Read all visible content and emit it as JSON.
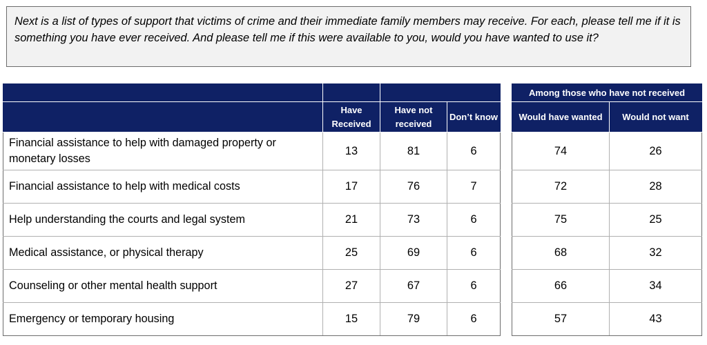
{
  "question": "Next is a list of types of support that victims of crime and their immediate family members may receive. For each, please tell me if it is something you have ever received. And please tell me if this were available to you, would you have wanted to use it?",
  "headers": {
    "have_received": "Have Received",
    "have_not_received": "Have not received",
    "dont_know": "Don’t know",
    "group_title": "Among those who have not received",
    "would_have_wanted": "Would have wanted",
    "would_not_want": "Would not want"
  },
  "rows": [
    {
      "label": "Financial assistance to help with damaged property or monetary losses",
      "have_received": "13",
      "have_not_received": "81",
      "dont_know": "6",
      "would_have_wanted": "74",
      "would_not_want": "26"
    },
    {
      "label": "Financial assistance to help with medical costs",
      "have_received": "17",
      "have_not_received": "76",
      "dont_know": "7",
      "would_have_wanted": "72",
      "would_not_want": "28"
    },
    {
      "label": "Help understanding the courts and legal system",
      "have_received": "21",
      "have_not_received": "73",
      "dont_know": "6",
      "would_have_wanted": "75",
      "would_not_want": "25"
    },
    {
      "label": "Medical assistance, or physical therapy",
      "have_received": "25",
      "have_not_received": "69",
      "dont_know": "6",
      "would_have_wanted": "68",
      "would_not_want": "32"
    },
    {
      "label": "Counseling or other mental health support",
      "have_received": "27",
      "have_not_received": "67",
      "dont_know": "6",
      "would_have_wanted": "66",
      "would_not_want": "34"
    },
    {
      "label": "Emergency or temporary housing",
      "have_received": "15",
      "have_not_received": "79",
      "dont_know": "6",
      "would_have_wanted": "57",
      "would_not_want": "43"
    }
  ],
  "colors": {
    "header_bg": "#0f2165",
    "header_text": "#ffffff",
    "question_bg": "#f2f2f2"
  }
}
